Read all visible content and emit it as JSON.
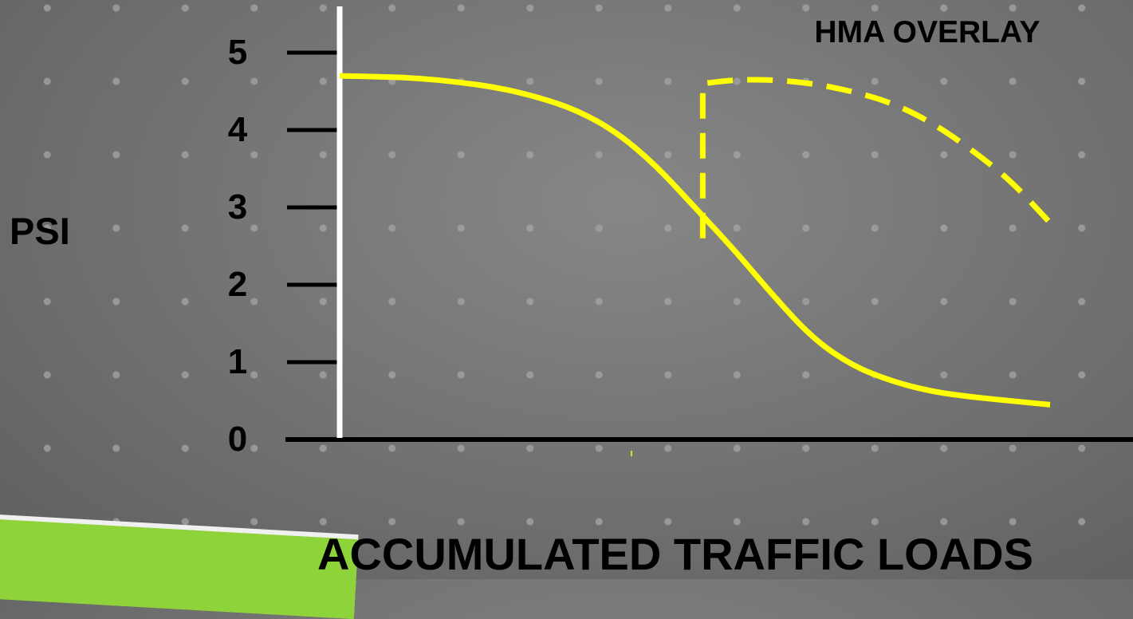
{
  "chart_data": {
    "type": "line",
    "title": "",
    "ylabel": "PSI",
    "xlabel": "ACCUMULATED TRAFFIC LOADS",
    "ylim": [
      0,
      5
    ],
    "yticks": [
      "0",
      "1",
      "2",
      "3",
      "4",
      "5"
    ],
    "annotation": "HMA OVERLAY",
    "series": [
      {
        "style": "solid",
        "color": "#ffff00",
        "x": [
          0,
          0.5,
          1,
          1.5,
          2,
          2.5,
          3,
          3.5,
          4,
          4.5,
          5,
          5.5,
          6,
          6.5,
          7,
          7.5,
          8,
          8.5,
          9
        ],
        "y": [
          4.7,
          4.69,
          4.67,
          4.62,
          4.55,
          4.43,
          4.26,
          3.98,
          3.55,
          3.0,
          2.45,
          1.85,
          1.3,
          0.95,
          0.75,
          0.62,
          0.55,
          0.5,
          0.45
        ]
      },
      {
        "style": "dashed",
        "color": "#ffff00",
        "x": [
          4.6,
          4.6,
          5,
          5.5,
          6,
          6.5,
          7,
          7.5,
          8,
          8.5,
          9
        ],
        "y": [
          2.6,
          4.6,
          4.65,
          4.65,
          4.6,
          4.5,
          4.35,
          4.1,
          3.75,
          3.35,
          2.8
        ]
      }
    ]
  },
  "colors": {
    "curve": "#ffff00",
    "y_axis": "#ffffff",
    "x_axis": "#000000",
    "accent": "#8ed33a"
  }
}
